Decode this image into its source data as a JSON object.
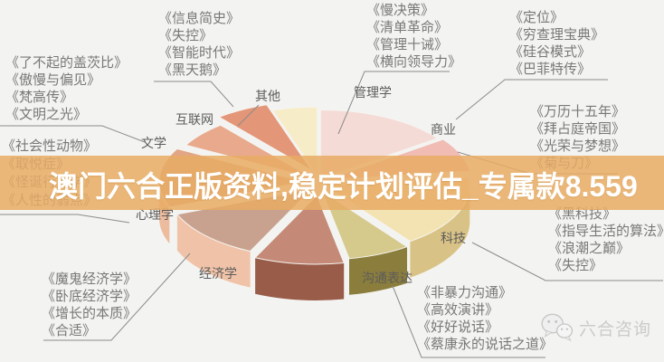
{
  "watermark": {
    "text": "澳门六合正版资料,稳定计划评估_专属款8.559",
    "band_color": "#e7ab64",
    "text_color": "#ffffff"
  },
  "logo": {
    "text": "六合咨询"
  },
  "chart_data": {
    "type": "pie",
    "style": "3d-exploded",
    "title": "",
    "legend": "none",
    "label_position": "category labels around slices, no percentage labels shown",
    "categories": [
      "管理学",
      "商业",
      "",
      "科技",
      "沟通表达",
      "经济学",
      "心理学",
      "文学",
      "互联网",
      "其他"
    ],
    "values": [
      15,
      8,
      17,
      7,
      10,
      12,
      14,
      6,
      6,
      5
    ],
    "colors_top": [
      "#f5dbd6",
      "#f0bcb4",
      "#f4e3b2",
      "#d5c98c",
      "#c58a77",
      "#c9a28f",
      "#e2a687",
      "#e8a98c",
      "#e39678",
      "#f7ecc8"
    ],
    "colors_side": [
      "#d9aaa2",
      "#cf9189",
      "#d9c285",
      "#8b7d3c",
      "#995c49",
      "#f0c3a8",
      "#edbb9d",
      "#c5876c",
      "#bd7458",
      "#dbcf9f"
    ]
  },
  "book_groups": [
    {
      "category": "文学",
      "books": [
        "《了不起的盖茨比》",
        "《傲慢与偏见》",
        "《梵高传》",
        "《文明之光》"
      ]
    },
    {
      "category": "互联网",
      "books": [
        "《信息简史》",
        "《失控》",
        "《智能时代》",
        "《黑天鹅》"
      ]
    },
    {
      "category": "管理学",
      "books": [
        "《慢决策》",
        "《清单革命》",
        "《管理十诫》",
        "《横向领导力》"
      ]
    },
    {
      "category": "商业",
      "books": [
        "《定位》",
        "《穷查理宝典》",
        "《硅谷模式》",
        "《巴菲特传》"
      ]
    },
    {
      "category": "",
      "books": [
        "《万历十五年》",
        "《拜占庭帝国》",
        "《光荣与梦想》",
        "《菊与刀》"
      ]
    },
    {
      "category": "科技",
      "books": [
        "《黑科技》",
        "《指导生活的算法》",
        "《浪潮之巅》",
        "《失控》"
      ]
    },
    {
      "category": "沟通表达",
      "books": [
        "《非暴力沟通》",
        "《高效演讲》",
        "《好好说话》",
        "《蔡康永的说话之道》"
      ]
    },
    {
      "category": "经济学",
      "books": [
        "《魔鬼经济学》",
        "《卧底经济学》",
        "《增长的本质》",
        "《合适》"
      ]
    },
    {
      "category": "心理学",
      "books": [
        "《社会性动物》",
        "《取悦症》",
        "《怪诞行为学》",
        "《人性的弱点》"
      ]
    }
  ]
}
